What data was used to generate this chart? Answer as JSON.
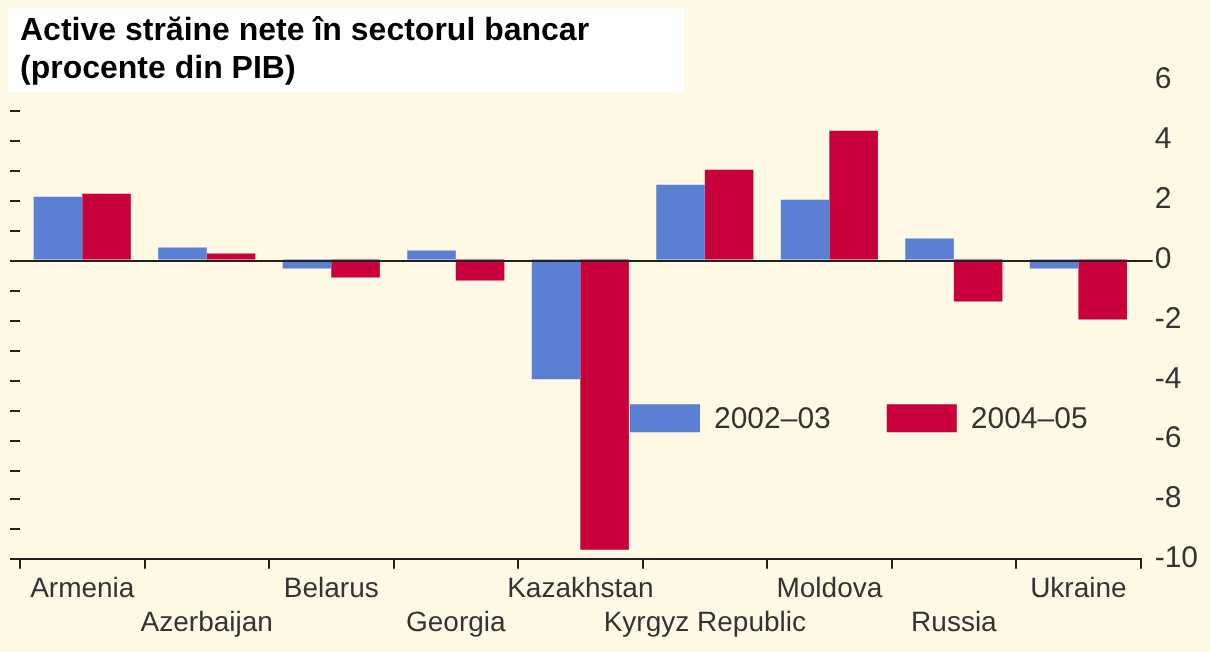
{
  "chart_data": {
    "type": "bar",
    "title": "Active străine nete în sectorul bancar\n(procente din PIB)",
    "categories": [
      "Armenia",
      "Azerbaijan",
      "Belarus",
      "Georgia",
      "Kazakhstan",
      "Kyrgyz Republic",
      "Moldova",
      "Russia",
      "Ukraine"
    ],
    "series": [
      {
        "name": "2002–03",
        "color": "#5b7fd2",
        "values": [
          2.1,
          0.4,
          -0.3,
          0.3,
          -4.0,
          2.5,
          2.0,
          0.7,
          -0.3
        ]
      },
      {
        "name": "2004–05",
        "color": "#c8003c",
        "values": [
          2.2,
          0.2,
          -0.6,
          -0.7,
          -9.7,
          3.0,
          4.3,
          -1.4,
          -2.0
        ]
      }
    ],
    "ylim": [
      -10,
      6
    ],
    "yticks": [
      -10,
      {
        "value": -9,
        "label": null
      },
      -8,
      {
        "value": -7,
        "label": null
      },
      -6,
      {
        "value": -5,
        "label": null
      },
      -4,
      {
        "value": -3,
        "label": null
      },
      -2,
      {
        "value": -1,
        "label": null
      },
      0,
      {
        "value": 1,
        "label": null
      },
      2,
      {
        "value": 3,
        "label": null
      },
      4,
      {
        "value": 5,
        "label": null
      },
      6
    ],
    "legend": "right"
  }
}
